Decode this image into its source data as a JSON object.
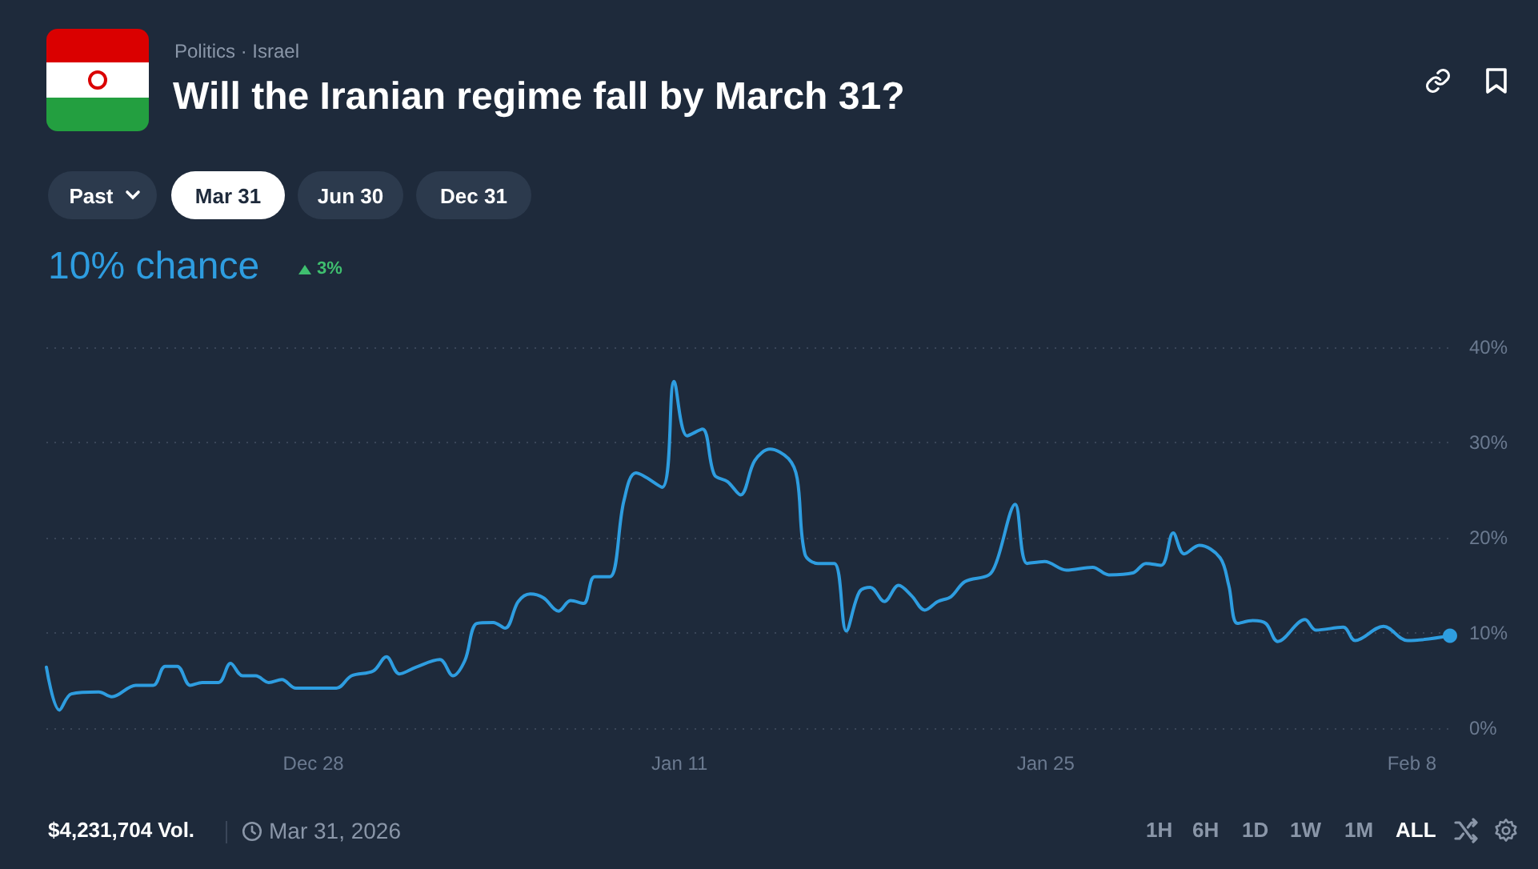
{
  "chart_data": {
    "type": "line",
    "title": "Will the Iranian regime fall by March 31?",
    "subtitle": "Politics · Israel",
    "annotations": [
      "Past",
      "Mar 31",
      "Jun 30",
      "Dec 31",
      "10% chance",
      "3%",
      "$4,231,704 Vol.",
      "Mar 31, 2026",
      "1H",
      "6H",
      "1D",
      "1W",
      "1M",
      "ALL"
    ],
    "x": [
      "2025-12-17T19:00",
      "2025-12-18T07:00",
      "2025-12-18T18:00",
      "2025-12-19T19:00",
      "2025-12-20T07:00",
      "2025-12-21T05:00",
      "2025-12-21T21:00",
      "2025-12-22T08:00",
      "2025-12-22T19:00",
      "2025-12-23T07:00",
      "2025-12-23T18:00",
      "2025-12-24T09:00",
      "2025-12-24T20:00",
      "2025-12-25T07:00",
      "2025-12-25T19:00",
      "2025-12-26T07:00",
      "2025-12-26T19:00",
      "2025-12-27T08:00",
      "2025-12-28T21:00",
      "2025-12-29T11:00",
      "2025-12-30T07:00",
      "2025-12-30T19:00",
      "2025-12-31T07:00",
      "2025-12-31T22:00",
      "2026-01-01T20:00",
      "2026-01-02T08:00",
      "2026-01-02T19:00",
      "2026-01-03T06:00",
      "2026-01-03T21:00",
      "2026-01-04T08:00",
      "2026-01-04T20:00",
      "2026-01-05T07:00",
      "2026-01-05T19:00",
      "2026-01-06T09:00",
      "2026-01-06T20:00",
      "2026-01-07T08:00",
      "2026-01-07T18:00",
      "2026-01-08T08:00",
      "2026-01-08T21:00",
      "2026-01-09T08:00",
      "2026-01-10T08:00",
      "2026-01-10T19:00",
      "2026-01-11T07:00",
      "2026-01-11T21:00",
      "2026-01-12T08:00",
      "2026-01-12T20:00",
      "2026-01-13T08:00",
      "2026-01-13T21:00",
      "2026-01-14T11:00",
      "2026-01-15T04:00",
      "2026-01-15T12:00",
      "2026-01-15T19:00",
      "2026-01-16T07:00",
      "2026-01-16T22:00",
      "2026-01-17T09:00",
      "2026-01-17T21:00",
      "2026-01-18T07:00",
      "2026-01-18T20:00",
      "2026-01-19T09:00",
      "2026-01-19T21:00",
      "2026-01-20T09:00",
      "2026-01-20T21:00",
      "2026-01-21T09:00",
      "2026-01-21T22:00",
      "2026-01-22T20:00",
      "2026-01-23T03:00",
      "2026-01-23T20:00",
      "2026-01-24T07:00",
      "2026-01-24T23:00",
      "2026-01-25T19:00",
      "2026-01-26T19:00",
      "2026-01-27T10:00",
      "2026-01-28T08:00",
      "2026-01-28T20:00",
      "2026-01-29T10:00",
      "2026-01-29T21:00",
      "2026-01-30T07:00",
      "2026-01-30T21:00",
      "2026-01-31T16:00",
      "2026-02-01T00:00",
      "2026-02-01T08:00",
      "2026-02-01T22:00",
      "2026-02-02T10:00",
      "2026-02-02T21:00",
      "2026-02-03T22:00",
      "2026-02-04T08:00",
      "2026-02-05T09:00",
      "2026-02-05T20:00",
      "2026-02-06T22:00",
      "2026-02-07T20:00",
      "2026-02-09T11:00"
    ],
    "series": [
      {
        "color": "#2e9de0",
        "values": [
          6.4,
          1.9,
          3.6,
          3.8,
          3.3,
          4.5,
          4.5,
          6.5,
          6.5,
          4.5,
          4.8,
          4.8,
          6.8,
          5.5,
          5.5,
          4.8,
          5.1,
          4.2,
          4.2,
          5.5,
          6.0,
          7.5,
          5.7,
          6.4,
          7.2,
          5.5,
          7.1,
          11.0,
          11.1,
          10.5,
          13.3,
          14.1,
          13.7,
          12.3,
          13.4,
          13.1,
          15.9,
          15.9,
          23.9,
          26.8,
          25.3,
          36.4,
          30.7,
          31.4,
          26.6,
          25.9,
          24.5,
          28.1,
          29.3,
          28.3,
          26.2,
          18.3,
          17.3,
          17.3,
          10.2,
          14.3,
          14.8,
          13.3,
          15.0,
          13.9,
          12.4,
          13.3,
          13.8,
          15.4,
          16.1,
          17.5,
          23.5,
          17.3,
          17.5,
          16.6,
          16.9,
          16.1,
          16.3,
          17.3,
          17.1,
          20.5,
          18.3,
          19.2,
          17.9,
          15.0,
          11.0,
          11.3,
          11.0,
          9.1,
          11.4,
          10.3,
          10.6,
          9.2,
          10.7,
          9.2,
          9.7
        ]
      }
    ],
    "xlim": [
      "2025-12-17T19:00",
      "2026-02-09T11:00"
    ],
    "xticks": [
      {
        "value": "2025-12-28",
        "label": "Dec 28"
      },
      {
        "value": "2026-01-11",
        "label": "Jan 11"
      },
      {
        "value": "2026-01-25",
        "label": "Jan 25"
      },
      {
        "value": "2026-02-08",
        "label": "Feb 8"
      }
    ],
    "ylim": [
      0,
      40
    ],
    "yticks": [
      {
        "value": 0,
        "label": "0%"
      },
      {
        "value": 10,
        "label": "10%"
      },
      {
        "value": 20,
        "label": "20%"
      },
      {
        "value": 30,
        "label": "30%"
      },
      {
        "value": 40,
        "label": "40%"
      }
    ],
    "grid": "y",
    "marker": "none",
    "line_style": "solid"
  }
}
